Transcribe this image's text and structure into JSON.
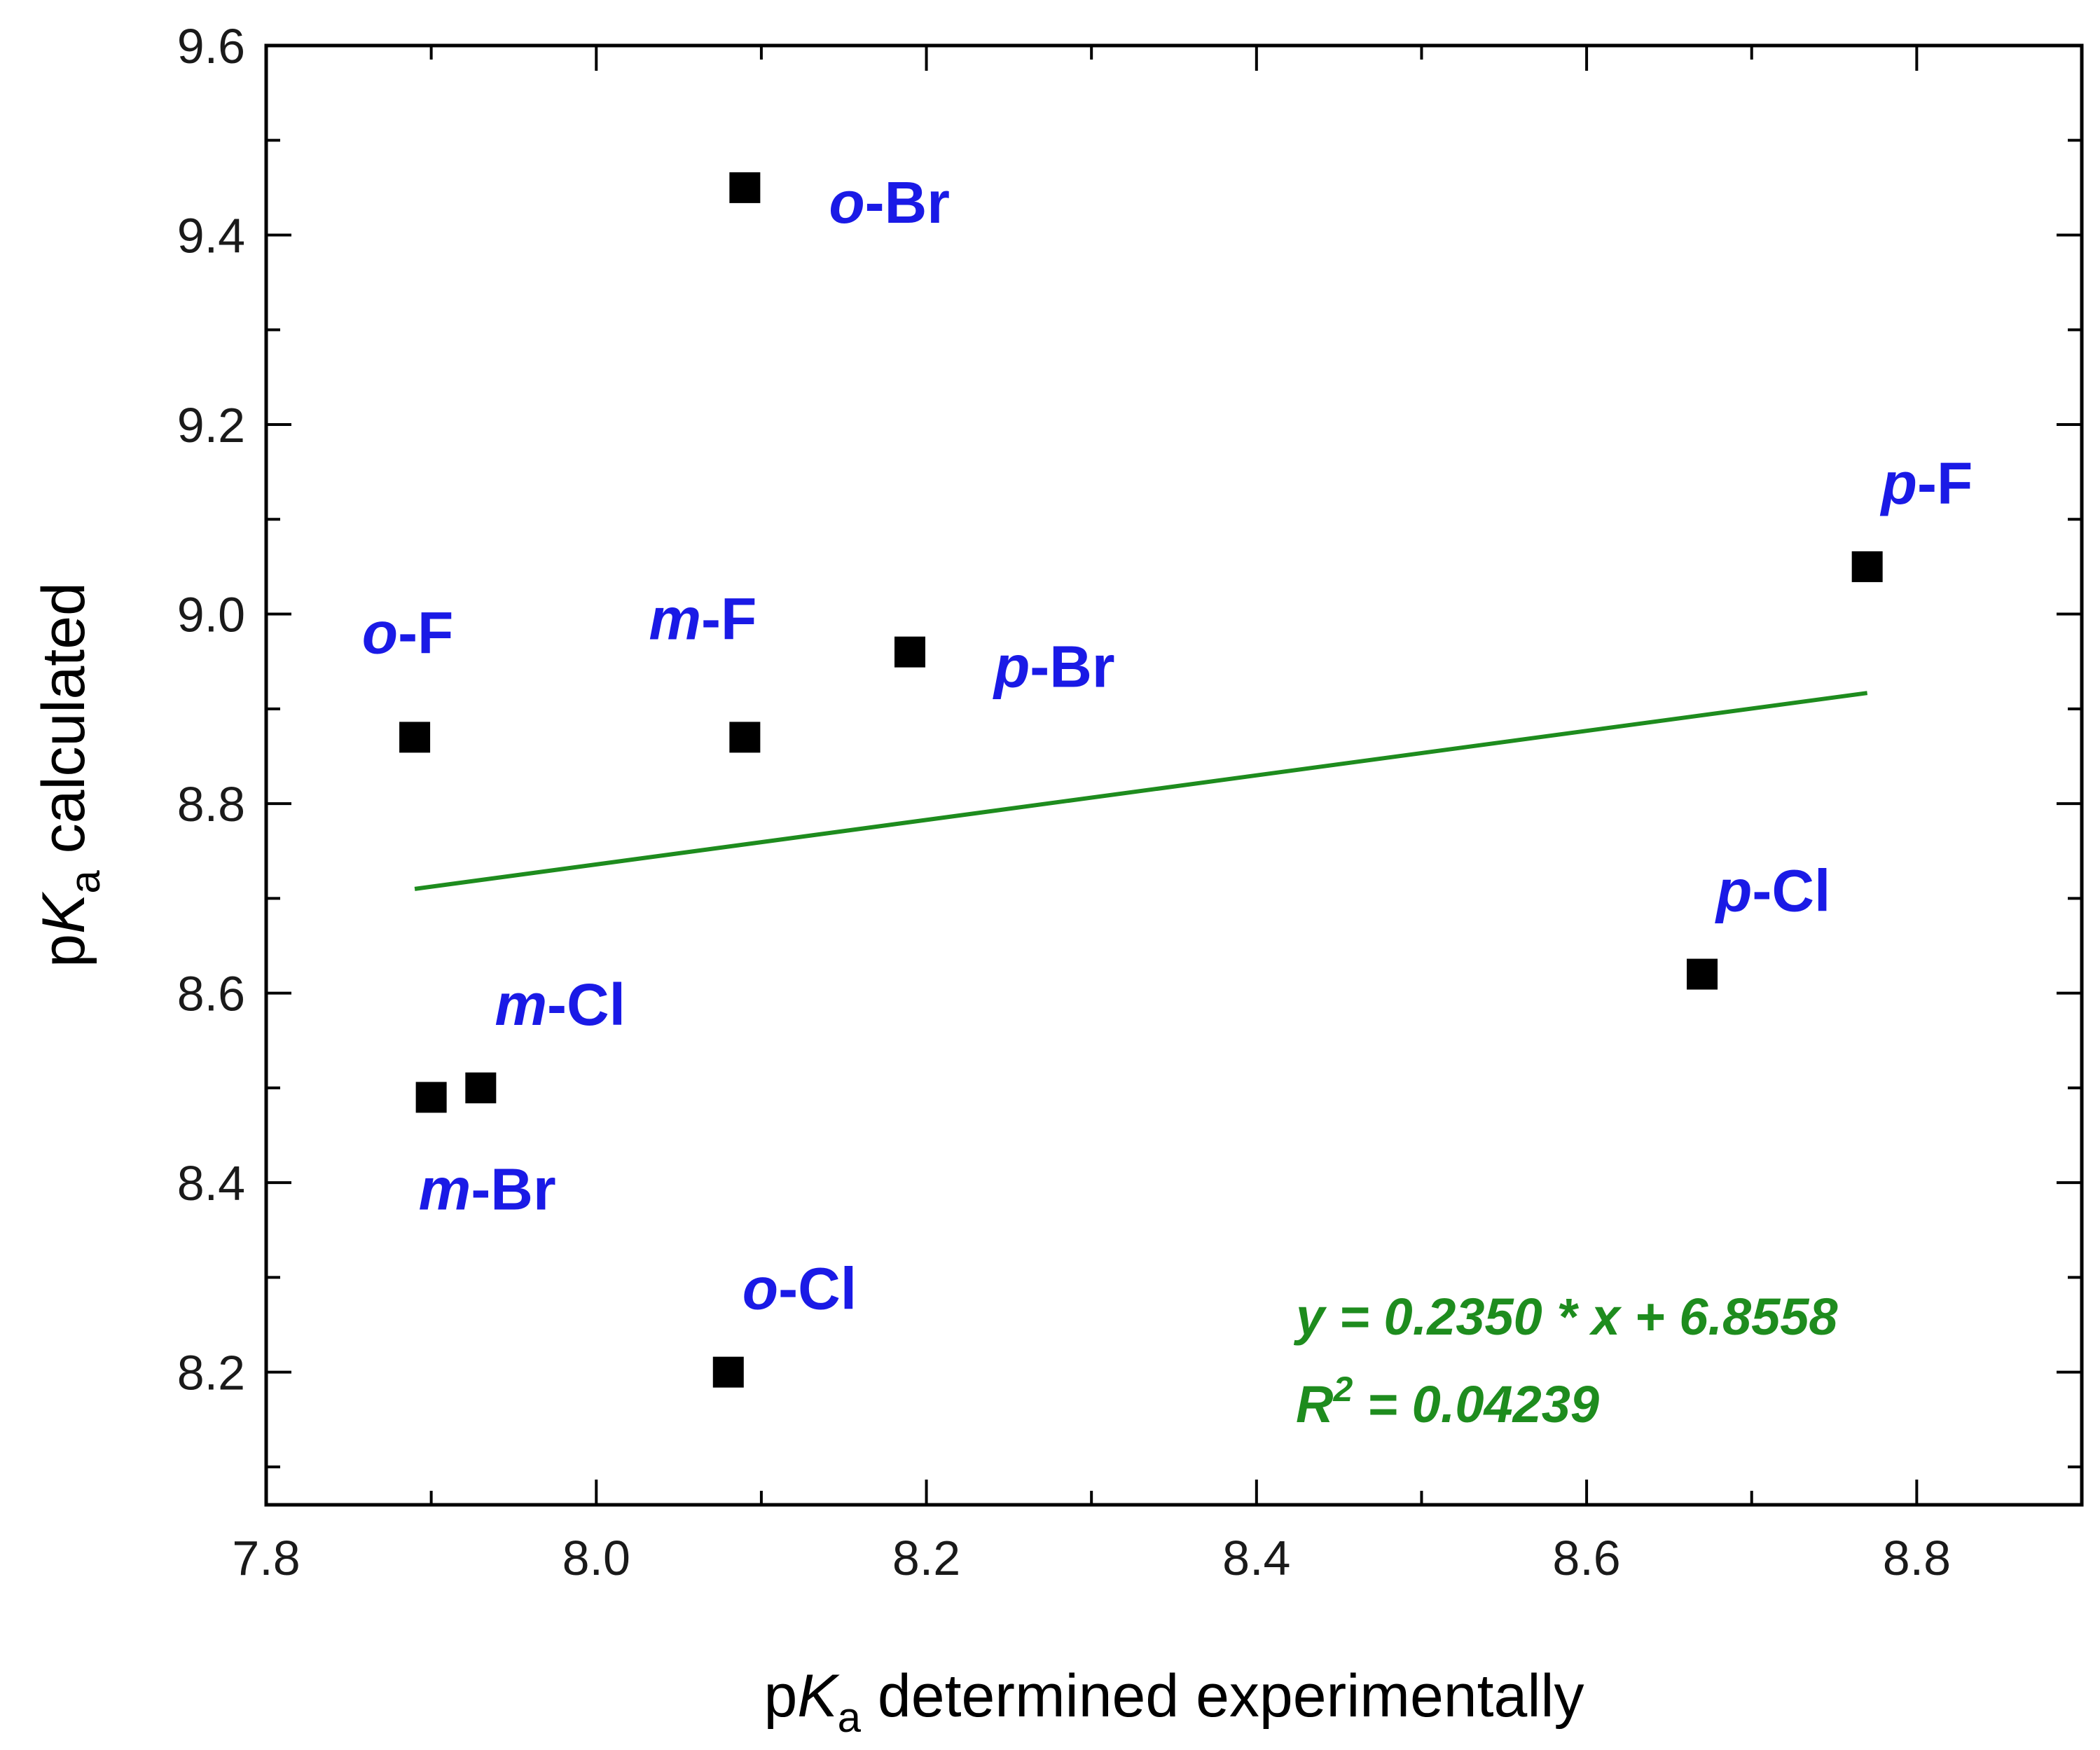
{
  "chart_data": {
    "type": "scatter",
    "xlabel": {
      "prefix": "p",
      "italic": "K",
      "sub": "a",
      "suffix": " determined experimentally"
    },
    "ylabel": {
      "prefix": "p",
      "italic": "K",
      "sub": "a",
      "suffix": " calculated"
    },
    "xlim": [
      7.8,
      8.9
    ],
    "ylim": [
      8.06,
      9.6
    ],
    "xticks": [
      "7.8",
      "8.0",
      "8.2",
      "8.4",
      "8.6",
      "8.8"
    ],
    "yticks": [
      "8.2",
      "8.4",
      "8.6",
      "8.8",
      "9.0",
      "9.2",
      "9.4",
      "9.6"
    ],
    "points": [
      {
        "x": 8.09,
        "y": 9.45,
        "prefix": "o",
        "suffix": "-Br",
        "label_pos": "right"
      },
      {
        "x": 8.77,
        "y": 9.05,
        "prefix": "p",
        "suffix": "-F",
        "label_pos": "above-right"
      },
      {
        "x": 7.89,
        "y": 8.87,
        "prefix": "o",
        "suffix": "-F",
        "label_pos": "above"
      },
      {
        "x": 8.09,
        "y": 8.87,
        "prefix": "m",
        "suffix": "-F",
        "label_pos": "above-left"
      },
      {
        "x": 8.19,
        "y": 8.96,
        "prefix": "p",
        "suffix": "-Br",
        "label_pos": "right"
      },
      {
        "x": 8.67,
        "y": 8.62,
        "prefix": "p",
        "suffix": "-Cl",
        "label_pos": "above-right"
      },
      {
        "x": 7.93,
        "y": 8.5,
        "prefix": "m",
        "suffix": "-Cl",
        "label_pos": "above-right"
      },
      {
        "x": 7.9,
        "y": 8.49,
        "prefix": "m",
        "suffix": "-Br",
        "label_pos": "below"
      },
      {
        "x": 8.08,
        "y": 8.2,
        "prefix": "o",
        "suffix": "-Cl",
        "label_pos": "above-right"
      }
    ],
    "fit": {
      "slope": 0.235,
      "intercept": 6.8558,
      "x_range": [
        7.89,
        8.77
      ]
    },
    "equation": "y = 0.2350 * x + 6.8558",
    "r2": {
      "prefix": "R",
      "sup": "2",
      "suffix": " = 0.04239"
    },
    "colors": {
      "label": "#1a1ae6",
      "fit": "#1e8c1e",
      "marker": "#000000"
    }
  }
}
